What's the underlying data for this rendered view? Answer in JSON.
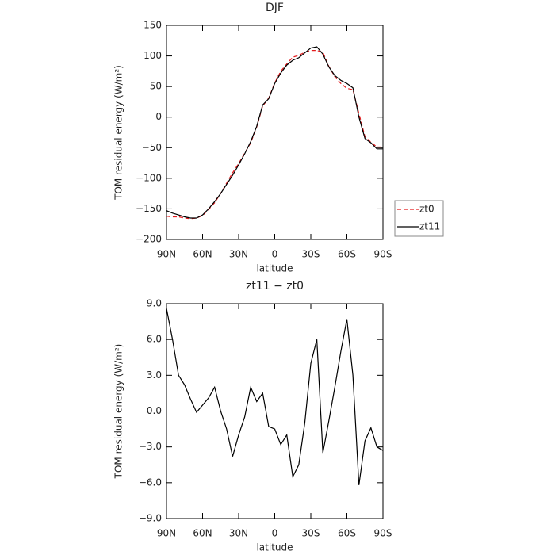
{
  "chart_data": [
    {
      "type": "line",
      "title": "DJF",
      "xlabel": "latitude",
      "ylabel": "TOM residual energy (W/m²)",
      "x": [
        90,
        85,
        80,
        75,
        70,
        65,
        60,
        55,
        50,
        45,
        40,
        35,
        30,
        25,
        20,
        15,
        10,
        5,
        0,
        -5,
        -10,
        -15,
        -20,
        -25,
        -30,
        -35,
        -40,
        -45,
        -50,
        -55,
        -60,
        -65,
        -70,
        -75,
        -80,
        -85,
        -90
      ],
      "xlim": [
        90,
        -90
      ],
      "xticks": [
        {
          "value": 90,
          "label": "90N"
        },
        {
          "value": 60,
          "label": "60N"
        },
        {
          "value": 30,
          "label": "30N"
        },
        0,
        {
          "value": -30,
          "label": "30S"
        },
        {
          "value": -60,
          "label": "60S"
        },
        {
          "value": -90,
          "label": "90S"
        }
      ],
      "ylim": [
        -200,
        150
      ],
      "yticks": [
        {
          "value": -200,
          "label": "−200"
        },
        {
          "value": -150,
          "label": "−150"
        },
        {
          "value": -100,
          "label": "−100"
        },
        {
          "value": -50,
          "label": "−50"
        },
        0,
        50,
        100,
        150
      ],
      "legend": "outside-right",
      "series": [
        {
          "name": "zt0",
          "color": "#e41a1c",
          "linestyle": "dashed",
          "values": [
            -162,
            -163,
            -163,
            -165,
            -166,
            -165,
            -161,
            -151,
            -140,
            -125,
            -108,
            -91,
            -76,
            -59,
            -42,
            -16,
            18,
            31,
            56,
            75,
            87,
            98,
            101,
            106,
            109,
            109,
            106,
            83,
            66,
            55,
            47,
            45,
            6,
            -32,
            -41,
            -49,
            -49
          ]
        },
        {
          "name": "zt11",
          "color": "#000000",
          "linestyle": "solid",
          "values": [
            -153,
            -157,
            -160,
            -163,
            -165,
            -165,
            -160,
            -150,
            -138,
            -125,
            -110,
            -95,
            -78,
            -60,
            -40,
            -15,
            20,
            30,
            55,
            72,
            85,
            93,
            97,
            105,
            113,
            115,
            103,
            82,
            68,
            60,
            55,
            48,
            0,
            -35,
            -42,
            -52,
            -52
          ]
        }
      ]
    },
    {
      "type": "line",
      "title": "zt11 − zt0",
      "xlabel": "latitude",
      "ylabel": "TOM residual energy (W/m²)",
      "x": [
        90,
        85,
        80,
        75,
        70,
        65,
        60,
        55,
        50,
        45,
        40,
        35,
        30,
        25,
        20,
        15,
        10,
        5,
        0,
        -5,
        -10,
        -15,
        -20,
        -25,
        -30,
        -35,
        -40,
        -45,
        -50,
        -55,
        -60,
        -65,
        -70,
        -75,
        -80,
        -85,
        -90
      ],
      "xlim": [
        90,
        -90
      ],
      "xticks": [
        {
          "value": 90,
          "label": "90N"
        },
        {
          "value": 60,
          "label": "60N"
        },
        {
          "value": 30,
          "label": "30N"
        },
        0,
        {
          "value": -30,
          "label": "30S"
        },
        {
          "value": -60,
          "label": "60S"
        },
        {
          "value": -90,
          "label": "90S"
        }
      ],
      "ylim": [
        -9,
        9
      ],
      "yticks": [
        {
          "value": -9,
          "label": "−9.0"
        },
        {
          "value": -6,
          "label": "−6.0"
        },
        {
          "value": -3,
          "label": "−3.0"
        },
        {
          "value": 0,
          "label": "0.0"
        },
        {
          "value": 3,
          "label": "3.0"
        },
        {
          "value": 6,
          "label": "6.0"
        },
        {
          "value": 9,
          "label": "9.0"
        }
      ],
      "series": [
        {
          "color": "#000000",
          "linestyle": "solid",
          "values": [
            8.6,
            6.0,
            3.0,
            2.2,
            1.0,
            -0.1,
            0.5,
            1.1,
            2.0,
            0.0,
            -1.5,
            -3.8,
            -2.0,
            -0.5,
            2.0,
            0.8,
            1.5,
            -1.3,
            -1.5,
            -2.8,
            -2.0,
            -5.5,
            -4.5,
            -1.0,
            4.0,
            6.0,
            -3.5,
            -0.8,
            2.0,
            5.0,
            7.7,
            3.0,
            -6.2,
            -2.5,
            -1.4,
            -3.0,
            -3.3
          ]
        }
      ]
    }
  ]
}
